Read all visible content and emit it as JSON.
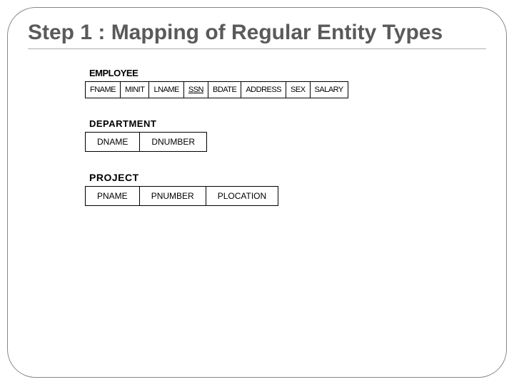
{
  "title": "Step 1 : Mapping of Regular Entity Types",
  "colors": {
    "border": "#888888",
    "title_text": "#5a5a5a",
    "cell_border": "#000000",
    "background": "#ffffff"
  },
  "tables": {
    "employee": {
      "name": "EMPLOYEE",
      "name_fontsize": 13,
      "cell_fontsize": 11,
      "columns": [
        "FNAME",
        "MINIT",
        "LNAME",
        "SSN",
        "BDATE",
        "ADDRESS",
        "SEX",
        "SALARY"
      ],
      "primary_key": "SSN"
    },
    "department": {
      "name": "DEPARTMENT",
      "name_fontsize": 13,
      "cell_fontsize": 12,
      "columns": [
        "DNAME",
        "DNUMBER"
      ],
      "primary_key": null
    },
    "project": {
      "name": "PROJECT",
      "name_fontsize": 14,
      "cell_fontsize": 12,
      "columns": [
        "PNAME",
        "PNUMBER",
        "PLOCATION"
      ],
      "primary_key": null
    }
  }
}
